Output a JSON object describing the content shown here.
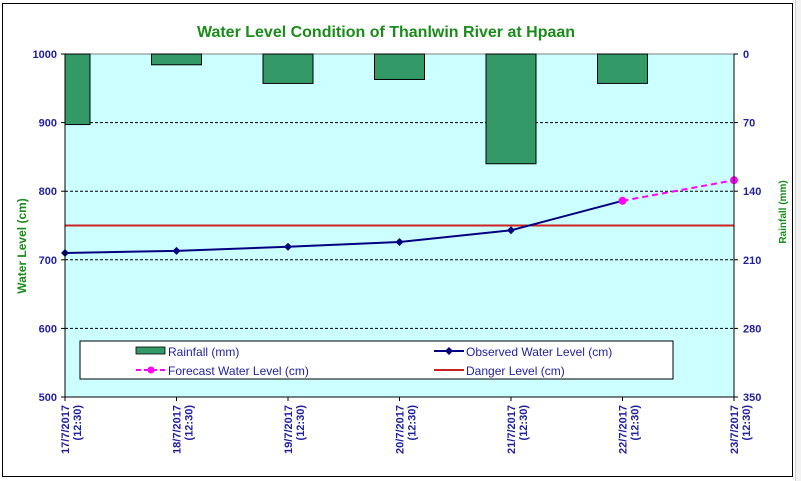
{
  "chart_data": {
    "type": "bar+line",
    "title": "Water Level Condition of Thanlwin  River at  Hpaan",
    "ylabel": "Water Level (cm)",
    "y2label": "Rainfall (mm)",
    "ylim": [
      500,
      1000
    ],
    "yticks": [
      "1000",
      "900",
      "800",
      "700",
      "600",
      "500"
    ],
    "y2lim": [
      0,
      350
    ],
    "y2_inverted": true,
    "y2ticks": [
      "0",
      "70",
      "140",
      "210",
      "280",
      "350"
    ],
    "categories": [
      [
        "17/7/2017",
        "(12:30)"
      ],
      [
        "18/7/2017",
        "(12:30)"
      ],
      [
        "19/7/2017",
        "(12:30)"
      ],
      [
        "20/7/2017",
        "(12:30)"
      ],
      [
        "21/7/2017",
        "(12:30)"
      ],
      [
        "22/7/2017",
        "(12:30)"
      ],
      [
        "23/7/2017",
        "(12:30)"
      ]
    ],
    "grid": true,
    "legend_position": "bottom-inside",
    "series": [
      {
        "name": "Rainfall (mm)",
        "type": "bar",
        "axis": "right",
        "color": "#339966",
        "values": [
          72,
          11,
          30,
          26,
          112,
          30,
          null
        ]
      },
      {
        "name": "Observed Water Level (cm)",
        "type": "line",
        "axis": "left",
        "color": "#000080",
        "marker": "diamond",
        "values": [
          710,
          713,
          719,
          726,
          743,
          786,
          null
        ]
      },
      {
        "name": "Forecast Water Level (cm)",
        "type": "line",
        "axis": "left",
        "color": "#ff00ff",
        "marker": "circle",
        "dashed": true,
        "values": [
          null,
          null,
          null,
          null,
          null,
          786,
          816
        ]
      },
      {
        "name": "Danger Level (cm)",
        "type": "line",
        "axis": "left",
        "color": "#cc2222",
        "values": [
          750,
          750,
          750,
          750,
          750,
          750,
          750
        ]
      }
    ],
    "legend": [
      {
        "label": "Rainfall (mm)",
        "key": "rainfall"
      },
      {
        "label": "Observed Water Level (cm)",
        "key": "observed"
      },
      {
        "label": "Forecast Water Level (cm)",
        "key": "forecast"
      },
      {
        "label": "Danger Level (cm)",
        "key": "danger"
      }
    ],
    "colors": {
      "plot_background": "#ccffff",
      "title": "#1a8c1a",
      "tick_labels": "#1f1fa0"
    }
  }
}
